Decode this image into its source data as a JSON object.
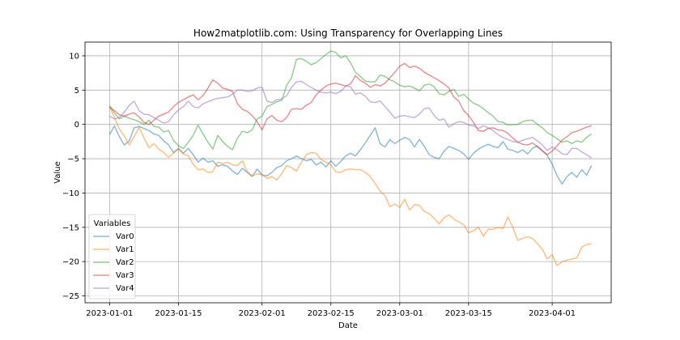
{
  "chart_data": {
    "type": "line",
    "title": "How2matplotlib.com: Using Transparency for Overlapping Lines",
    "xlabel": "Date",
    "ylabel": "Value",
    "x_start": "2023-01-01",
    "x_step_days": 1,
    "x_count": 99,
    "xticks": [
      "2023-01-01",
      "2023-01-15",
      "2023-02-01",
      "2023-02-15",
      "2023-03-01",
      "2023-03-15",
      "2023-04-01"
    ],
    "xlim": [
      "2022-12-27",
      "2023-04-13"
    ],
    "ylim": [
      -26,
      12
    ],
    "yticks": [
      10,
      5,
      0,
      -5,
      -10,
      -15,
      -20,
      -25
    ],
    "grid": true,
    "line_alpha": 0.5,
    "legend": {
      "title": "Variables",
      "placement": "lower-left"
    },
    "series": [
      {
        "name": "Var0",
        "color": "#1f77b4",
        "values": [
          -1.5,
          -0.2,
          -1.8,
          -3.0,
          -2.4,
          -0.5,
          -0.3,
          -0.6,
          -0.9,
          -1.4,
          -1.6,
          -2.4,
          -3.0,
          -4.1,
          -3.5,
          -4.2,
          -3.5,
          -4.4,
          -5.5,
          -4.9,
          -5.5,
          -5.3,
          -6.1,
          -5.9,
          -6.1,
          -6.8,
          -7.3,
          -6.4,
          -7.0,
          -7.6,
          -6.5,
          -7.4,
          -7.5,
          -7.0,
          -6.3,
          -6.0,
          -5.3,
          -5.0,
          -4.6,
          -5.0,
          -5.3,
          -5.1,
          -5.9,
          -5.5,
          -6.2,
          -5.3,
          -6.1,
          -5.4,
          -4.6,
          -4.2,
          -4.6,
          -3.7,
          -2.7,
          -1.6,
          -0.5,
          -2.8,
          -3.3,
          -2.2,
          -2.8,
          -2.3,
          -1.9,
          -2.2,
          -3.3,
          -2.2,
          -3.2,
          -4.4,
          -4.8,
          -5.0,
          -3.9,
          -3.2,
          -3.5,
          -3.8,
          -4.3,
          -5.1,
          -4.2,
          -3.6,
          -3.2,
          -2.9,
          -3.2,
          -3.4,
          -2.5,
          -3.6,
          -3.8,
          -4.1,
          -3.7,
          -4.3,
          -3.5,
          -3.1,
          -3.9,
          -4.5,
          -5.8,
          -7.5,
          -8.7,
          -7.6,
          -7.0,
          -7.7,
          -6.6,
          -7.4,
          -6.0
        ]
      },
      {
        "name": "Var1",
        "color": "#ff7f0e",
        "values": [
          2.6,
          1.0,
          -0.7,
          -1.7,
          -3.0,
          -1.8,
          -0.4,
          -2.0,
          -3.4,
          -2.8,
          -3.6,
          -4.1,
          -4.8,
          -4.2,
          -3.6,
          -4.3,
          -4.6,
          -5.8,
          -6.6,
          -6.5,
          -7.0,
          -6.9,
          -5.5,
          -5.7,
          -5.5,
          -5.9,
          -6.0,
          -5.3,
          -6.9,
          -7.5,
          -7.2,
          -7.3,
          -7.9,
          -7.6,
          -8.1,
          -7.2,
          -6.0,
          -6.3,
          -6.8,
          -5.5,
          -4.4,
          -4.1,
          -4.2,
          -5.1,
          -5.5,
          -5.9,
          -6.9,
          -7.0,
          -6.6,
          -6.5,
          -6.6,
          -6.6,
          -7.0,
          -7.6,
          -8.6,
          -9.7,
          -10.4,
          -12.0,
          -11.6,
          -12.1,
          -10.9,
          -12.5,
          -11.7,
          -11.8,
          -12.7,
          -13.0,
          -13.7,
          -14.5,
          -13.6,
          -13.2,
          -13.8,
          -14.2,
          -14.6,
          -15.8,
          -15.5,
          -15.0,
          -16.3,
          -15.3,
          -15.3,
          -15.0,
          -15.2,
          -13.5,
          -15.0,
          -16.9,
          -16.6,
          -16.4,
          -16.6,
          -17.4,
          -18.2,
          -19.6,
          -19.0,
          -20.6,
          -20.0,
          -19.8,
          -19.6,
          -19.5,
          -17.9,
          -17.5,
          -17.4
        ]
      },
      {
        "name": "Var2",
        "color": "#2ca02c",
        "values": [
          2.7,
          1.7,
          0.8,
          1.2,
          0.9,
          0.7,
          0.4,
          0.0,
          0.6,
          -0.3,
          -0.4,
          -1.1,
          -0.9,
          -2.3,
          -3.1,
          -3.5,
          -2.6,
          -1.6,
          -0.1,
          -1.4,
          -2.6,
          -3.6,
          -1.6,
          -2.5,
          -3.2,
          -3.7,
          -2.0,
          -1.0,
          -1.2,
          -0.8,
          0.8,
          1.2,
          2.6,
          2.9,
          3.3,
          3.5,
          5.7,
          6.8,
          9.5,
          9.6,
          9.2,
          8.7,
          9.0,
          9.6,
          10.2,
          10.7,
          10.5,
          9.7,
          10.0,
          9.0,
          7.6,
          7.0,
          6.3,
          6.2,
          6.2,
          7.2,
          7.0,
          6.5,
          6.2,
          5.7,
          5.5,
          5.6,
          5.3,
          4.9,
          5.7,
          5.9,
          5.5,
          4.5,
          4.3,
          4.8,
          5.1,
          4.1,
          4.4,
          3.7,
          3.1,
          2.8,
          2.3,
          1.7,
          1.2,
          0.4,
          0.3,
          -0.1,
          0.0,
          0.0,
          0.4,
          0.6,
          0.6,
          0.0,
          -0.5,
          -1.2,
          -1.6,
          -2.1,
          -2.6,
          -2.4,
          -2.8,
          -2.4,
          -2.6,
          -1.9,
          -1.4
        ]
      },
      {
        "name": "Var3",
        "color": "#d62728",
        "values": [
          2.5,
          2.0,
          1.4,
          1.2,
          1.5,
          1.7,
          1.1,
          0.3,
          0.0,
          0.6,
          1.2,
          1.5,
          1.8,
          2.6,
          3.2,
          3.6,
          4.0,
          4.3,
          3.6,
          4.2,
          5.3,
          6.5,
          6.0,
          5.3,
          5.1,
          4.8,
          3.0,
          2.2,
          1.9,
          1.3,
          0.4,
          -0.8,
          0.8,
          1.3,
          0.6,
          0.4,
          1.0,
          2.2,
          2.3,
          2.2,
          2.8,
          3.2,
          4.3,
          5.0,
          5.6,
          5.9,
          6.0,
          5.8,
          5.6,
          5.9,
          7.1,
          6.4,
          6.0,
          5.4,
          5.8,
          5.6,
          6.0,
          6.8,
          7.6,
          8.5,
          8.9,
          8.3,
          8.5,
          8.2,
          7.6,
          7.2,
          6.8,
          6.4,
          5.9,
          5.3,
          4.0,
          3.4,
          2.0,
          1.3,
          0.3,
          -0.9,
          -1.0,
          -0.6,
          -0.5,
          -0.8,
          -0.9,
          -1.3,
          -2.0,
          -2.6,
          -2.9,
          -3.0,
          -2.7,
          -3.3,
          -3.8,
          -4.4,
          -3.9,
          -3.1,
          -2.3,
          -1.8,
          -1.2,
          -1.0,
          -0.7,
          -0.4,
          -0.2
        ]
      },
      {
        "name": "Var4",
        "color": "#9467bd",
        "values": [
          1.2,
          0.8,
          1.0,
          1.8,
          2.8,
          3.4,
          2.0,
          1.5,
          1.4,
          1.0,
          0.6,
          0.2,
          0.4,
          1.4,
          2.1,
          2.6,
          3.4,
          2.6,
          2.4,
          3.0,
          3.3,
          3.6,
          3.8,
          3.9,
          4.0,
          4.4,
          5.0,
          5.0,
          4.8,
          4.9,
          5.3,
          5.4,
          3.4,
          3.2,
          3.6,
          3.7,
          4.2,
          5.4,
          6.2,
          6.3,
          5.8,
          5.4,
          5.0,
          4.7,
          4.6,
          4.7,
          4.5,
          4.8,
          5.6,
          5.5,
          4.4,
          4.6,
          4.1,
          3.3,
          3.2,
          3.4,
          2.6,
          1.8,
          0.9,
          1.2,
          1.3,
          1.1,
          1.0,
          1.5,
          2.3,
          2.4,
          1.3,
          0.6,
          0.8,
          -0.4,
          0.1,
          0.4,
          0.3,
          -0.1,
          -0.2,
          -0.6,
          -0.2,
          -0.5,
          -0.9,
          -1.5,
          -1.9,
          -2.2,
          -2.5,
          -2.6,
          -2.3,
          -2.1,
          -1.9,
          -2.4,
          -3.0,
          -3.8,
          -3.3,
          -3.7,
          -4.3,
          -4.4,
          -3.5,
          -3.5,
          -4.0,
          -4.4,
          -4.9
        ]
      }
    ]
  }
}
